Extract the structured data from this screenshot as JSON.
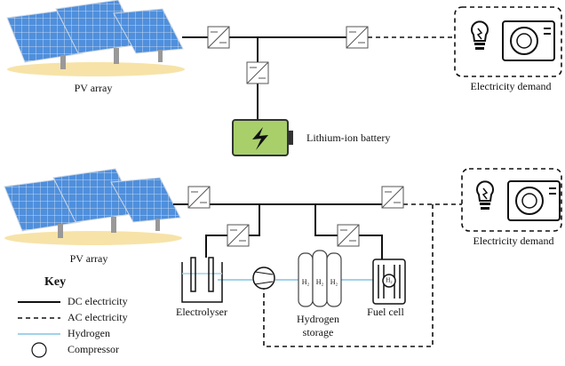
{
  "system_1": {
    "pv_label": "PV array",
    "demand_label": "Electricity demand",
    "battery_label": "Lithium-ion battery"
  },
  "system_2": {
    "pv_label": "PV array",
    "demand_label": "Electricity demand",
    "electrolyser_label": "Electrolyser",
    "storage_label": [
      "Hydrogen",
      "storage"
    ],
    "fuel_cell_label": "Fuel cell",
    "tank_labels": [
      "H₂",
      "H₂",
      "H₂"
    ],
    "fuel_cell_symbol": "H₂"
  },
  "key": {
    "title": "Key",
    "items": [
      "DC electricity",
      "AC electricity",
      "Hydrogen",
      "Compressor"
    ]
  }
}
